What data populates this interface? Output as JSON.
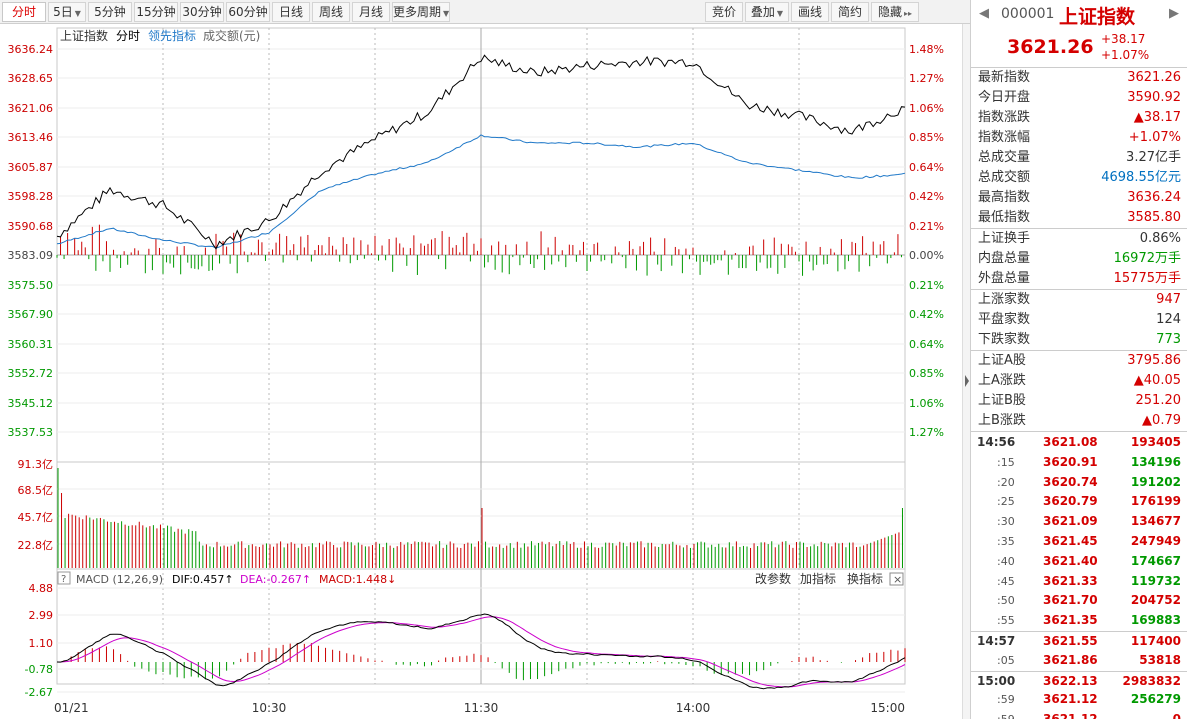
{
  "toolbar": {
    "period_tabs": [
      {
        "label": "分时",
        "active": true,
        "dropdown": false
      },
      {
        "label": "5日",
        "active": false,
        "dropdown": true
      },
      {
        "label": "5分钟",
        "active": false,
        "dropdown": false
      },
      {
        "label": "15分钟",
        "active": false,
        "dropdown": false
      },
      {
        "label": "30分钟",
        "active": false,
        "dropdown": false
      },
      {
        "label": "60分钟",
        "active": false,
        "dropdown": false
      },
      {
        "label": "日线",
        "active": false,
        "dropdown": false
      },
      {
        "label": "周线",
        "active": false,
        "dropdown": false
      },
      {
        "label": "月线",
        "active": false,
        "dropdown": false
      },
      {
        "label": "更多周期",
        "active": false,
        "dropdown": true
      }
    ],
    "tools": [
      {
        "label": "竞价",
        "dropdown": false
      },
      {
        "label": "叠加",
        "dropdown": true
      },
      {
        "label": "画线",
        "dropdown": false
      },
      {
        "label": "简约",
        "dropdown": false
      },
      {
        "label": "隐藏",
        "dropdown": false,
        "arrow": "▸▸"
      }
    ]
  },
  "chart": {
    "legend": {
      "index_name": "上证指数",
      "mode": "分时",
      "leading": "领先指标",
      "amount": "成交额(元)"
    },
    "price_ticks": [
      "3636.24",
      "3628.65",
      "3621.06",
      "3613.46",
      "3605.87",
      "3598.28",
      "3590.68",
      "3583.09",
      "3575.50",
      "3567.90",
      "3560.31",
      "3552.72",
      "3545.12",
      "3537.53"
    ],
    "pct_ticks": [
      "1.48%",
      "1.27%",
      "1.06%",
      "0.85%",
      "0.64%",
      "0.42%",
      "0.21%",
      "0.00%",
      "0.21%",
      "0.42%",
      "0.64%",
      "0.85%",
      "1.06%",
      "1.27%"
    ],
    "volume_ticks": [
      "91.3亿",
      "68.5亿",
      "45.7亿",
      "22.8亿"
    ],
    "macd": {
      "help_icon": "?",
      "name": "MACD (12,26,9)",
      "dif_label": "DIF:",
      "dif": "0.457",
      "dif_arrow": "↑",
      "dea_label": "DEA:",
      "dea": "-0.267",
      "dea_arrow": "↑",
      "macd_label": "MACD:",
      "macd": "1.448",
      "macd_arrow": "↓",
      "buttons": [
        "改参数",
        "加指标",
        "换指标"
      ],
      "close_icon": "×",
      "ticks": [
        "4.88",
        "2.99",
        "1.10",
        "-0.78",
        "-2.67"
      ]
    },
    "time_labels": [
      "01/21",
      "10:30",
      "11:30",
      "14:00",
      "15:00"
    ],
    "colors": {
      "price_line": "#000000",
      "avg_line": "#1f78c8",
      "up": "#cc0000",
      "down": "#009900",
      "dif": "#000000",
      "dea": "#cc00cc"
    }
  },
  "chart_data": {
    "type": "line",
    "x": [
      "09:30",
      "09:45",
      "10:00",
      "10:15",
      "10:30",
      "10:45",
      "11:00",
      "11:15",
      "11:30",
      "13:15",
      "13:30",
      "13:45",
      "14:00",
      "14:15",
      "14:30",
      "14:45",
      "15:00"
    ],
    "series": [
      {
        "name": "",
        "values": [
          3588,
          3600,
          3596,
          3586,
          3592,
          3605,
          3613,
          3620,
          3634,
          3630,
          3632,
          3633,
          3633,
          3622,
          3619,
          3615,
          3621.26
        ]
      },
      {
        "name": "",
        "values": [
          3586,
          3590,
          3587,
          3585,
          3589,
          3600,
          3604,
          3607,
          3614,
          3612,
          3612,
          3611,
          3612,
          3607,
          3605,
          3603,
          3604
        ]
      }
    ],
    "ylim": [
      3537.53,
      3636.24
    ],
    "open": 3590.92,
    "high": 3636.24,
    "low": 3585.8,
    "macd": {
      "dif": 0.457,
      "dea": -0.267,
      "macd": 1.448,
      "range": [
        -2.67,
        4.88
      ]
    },
    "volume_max": "91.3亿"
  },
  "quote": {
    "code": "000001",
    "name": "上证指数",
    "price": "3621.26",
    "change": "+38.17",
    "change_pct": "+1.07%"
  },
  "stats": [
    [
      {
        "label": "最新指数",
        "value": "3621.26",
        "color": "red"
      },
      {
        "label": "今日开盘",
        "value": "3590.92",
        "color": "red"
      },
      {
        "label": "指数涨跌",
        "value": "▲38.17",
        "color": "red"
      },
      {
        "label": "指数涨幅",
        "value": "+1.07%",
        "color": "red"
      },
      {
        "label": "总成交量",
        "value": "3.27亿手",
        "color": "blk"
      },
      {
        "label": "总成交额",
        "value": "4698.55亿元",
        "color": "blue"
      },
      {
        "label": "最高指数",
        "value": "3636.24",
        "color": "red"
      },
      {
        "label": "最低指数",
        "value": "3585.80",
        "color": "red"
      }
    ],
    [
      {
        "label": "上证换手",
        "value": "0.86%",
        "color": "blk"
      },
      {
        "label": "内盘总量",
        "value": "16972万手",
        "color": "green"
      },
      {
        "label": "外盘总量",
        "value": "15775万手",
        "color": "red"
      }
    ],
    [
      {
        "label": "上涨家数",
        "value": "947",
        "color": "red"
      },
      {
        "label": "平盘家数",
        "value": "124",
        "color": "blk"
      },
      {
        "label": "下跌家数",
        "value": "773",
        "color": "green"
      }
    ],
    [
      {
        "label": "上证A股",
        "value": "3795.86",
        "color": "red"
      },
      {
        "label": "上A涨跌",
        "value": "▲40.05",
        "color": "red"
      },
      {
        "label": "上证B股",
        "value": "251.20",
        "color": "red"
      },
      {
        "label": "上B涨跌",
        "value": "▲0.79",
        "color": "red"
      }
    ]
  ],
  "ticks": [
    {
      "time": "14:56",
      "sub": false,
      "price": "3621.08",
      "vol": "193405",
      "color": "red",
      "sep": false
    },
    {
      "time": ":15",
      "sub": true,
      "price": "3620.91",
      "vol": "134196",
      "color": "green",
      "sep": false
    },
    {
      "time": ":20",
      "sub": true,
      "price": "3620.74",
      "vol": "191202",
      "color": "green",
      "sep": false
    },
    {
      "time": ":25",
      "sub": true,
      "price": "3620.79",
      "vol": "176199",
      "color": "red",
      "sep": false
    },
    {
      "time": ":30",
      "sub": true,
      "price": "3621.09",
      "vol": "134677",
      "color": "red",
      "sep": false
    },
    {
      "time": ":35",
      "sub": true,
      "price": "3621.45",
      "vol": "247949",
      "color": "red",
      "sep": false
    },
    {
      "time": ":40",
      "sub": true,
      "price": "3621.40",
      "vol": "174667",
      "color": "green",
      "sep": false
    },
    {
      "time": ":45",
      "sub": true,
      "price": "3621.33",
      "vol": "119732",
      "color": "green",
      "sep": false
    },
    {
      "time": ":50",
      "sub": true,
      "price": "3621.70",
      "vol": "204752",
      "color": "red",
      "sep": false
    },
    {
      "time": ":55",
      "sub": true,
      "price": "3621.35",
      "vol": "169883",
      "color": "green",
      "sep": false
    },
    {
      "time": "14:57",
      "sub": false,
      "price": "3621.55",
      "vol": "117400",
      "color": "red",
      "sep": true
    },
    {
      "time": ":05",
      "sub": true,
      "price": "3621.86",
      "vol": "53818",
      "color": "red",
      "sep": false
    },
    {
      "time": "15:00",
      "sub": false,
      "price": "3622.13",
      "vol": "2983832",
      "color": "red",
      "sep": true
    },
    {
      "time": ":59",
      "sub": true,
      "price": "3621.12",
      "vol": "256279",
      "color": "green",
      "sep": false
    },
    {
      "time": ":59",
      "sub": true,
      "price": "3621.12",
      "vol": "0",
      "color": "red",
      "sep": false
    }
  ]
}
